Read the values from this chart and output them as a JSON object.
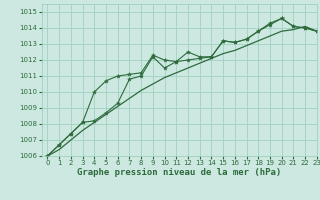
{
  "title": "Graphe pression niveau de la mer (hPa)",
  "background_color": "#cce8e0",
  "grid_color": "#99ccbb",
  "line_color": "#2d6b3c",
  "xlim": [
    -0.5,
    23
  ],
  "ylim": [
    1006,
    1015.5
  ],
  "yticks": [
    1006,
    1007,
    1008,
    1009,
    1010,
    1011,
    1012,
    1013,
    1014,
    1015
  ],
  "xticks": [
    0,
    1,
    2,
    3,
    4,
    5,
    6,
    7,
    8,
    9,
    10,
    11,
    12,
    13,
    14,
    15,
    16,
    17,
    18,
    19,
    20,
    21,
    22,
    23
  ],
  "series1_x": [
    0,
    1,
    2,
    3,
    4,
    5,
    6,
    7,
    8,
    9,
    10,
    11,
    12,
    13,
    14,
    15,
    16,
    17,
    18,
    19,
    20,
    21,
    22,
    23
  ],
  "series1_y": [
    1006.0,
    1006.7,
    1007.4,
    1008.1,
    1010.0,
    1010.7,
    1011.0,
    1011.1,
    1011.2,
    1012.3,
    1012.0,
    1011.9,
    1012.5,
    1012.2,
    1012.2,
    1013.2,
    1013.1,
    1013.3,
    1013.8,
    1014.3,
    1014.6,
    1014.1,
    1014.0,
    1013.8
  ],
  "series2_x": [
    0,
    1,
    2,
    3,
    4,
    5,
    6,
    7,
    8,
    9,
    10,
    11,
    12,
    13,
    14,
    15,
    16,
    17,
    18,
    19,
    20,
    21,
    22,
    23
  ],
  "series2_y": [
    1006.0,
    1006.7,
    1007.4,
    1008.1,
    1008.2,
    1008.7,
    1009.3,
    1010.8,
    1011.0,
    1012.2,
    1011.5,
    1011.9,
    1012.0,
    1012.1,
    1012.2,
    1013.2,
    1013.1,
    1013.3,
    1013.8,
    1014.2,
    1014.6,
    1014.1,
    1014.0,
    1013.8
  ],
  "series3_x": [
    0,
    1,
    2,
    3,
    4,
    5,
    6,
    7,
    8,
    9,
    10,
    11,
    12,
    13,
    14,
    15,
    16,
    17,
    18,
    19,
    20,
    21,
    22,
    23
  ],
  "series3_y": [
    1006.0,
    1006.4,
    1007.0,
    1007.6,
    1008.1,
    1008.6,
    1009.1,
    1009.6,
    1010.1,
    1010.5,
    1010.9,
    1011.2,
    1011.5,
    1011.8,
    1012.1,
    1012.4,
    1012.6,
    1012.9,
    1013.2,
    1013.5,
    1013.8,
    1013.9,
    1014.1,
    1013.8
  ],
  "title_fontsize": 6.5,
  "tick_fontsize": 5.0
}
